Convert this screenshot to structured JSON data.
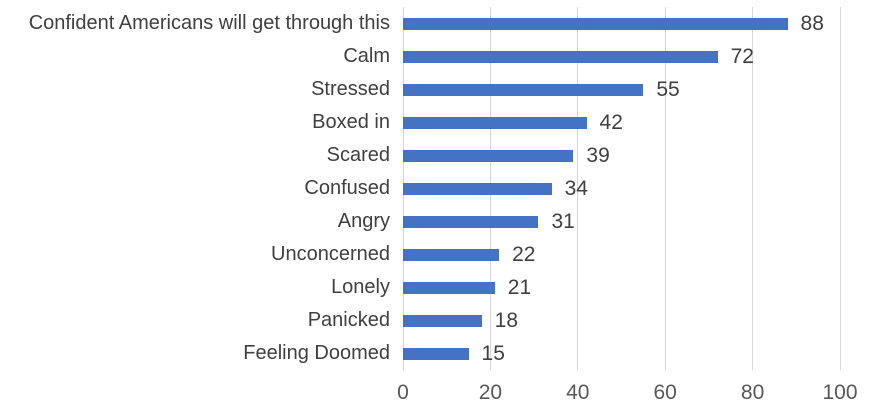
{
  "chart_data": {
    "type": "bar",
    "orientation": "horizontal",
    "title": "",
    "xlabel": "",
    "ylabel": "",
    "categories": [
      "Confident Americans will get through this",
      "Calm",
      "Stressed",
      "Boxed in",
      "Scared",
      "Confused",
      "Angry",
      "Unconcerned",
      "Lonely",
      "Panicked",
      "Feeling Doomed"
    ],
    "values": [
      88,
      72,
      55,
      42,
      39,
      34,
      31,
      22,
      21,
      18,
      15
    ],
    "xlim": [
      0,
      100
    ],
    "xticks": [
      0,
      20,
      40,
      60,
      80,
      100
    ],
    "grid": "vertical",
    "legend": "none",
    "colors": {
      "bar": "#4472C4",
      "gridline": "#D5D5D5",
      "category_label": "#404040",
      "value_label": "#404040",
      "axis_label": "#595959",
      "background": "#FFFFFF"
    }
  }
}
